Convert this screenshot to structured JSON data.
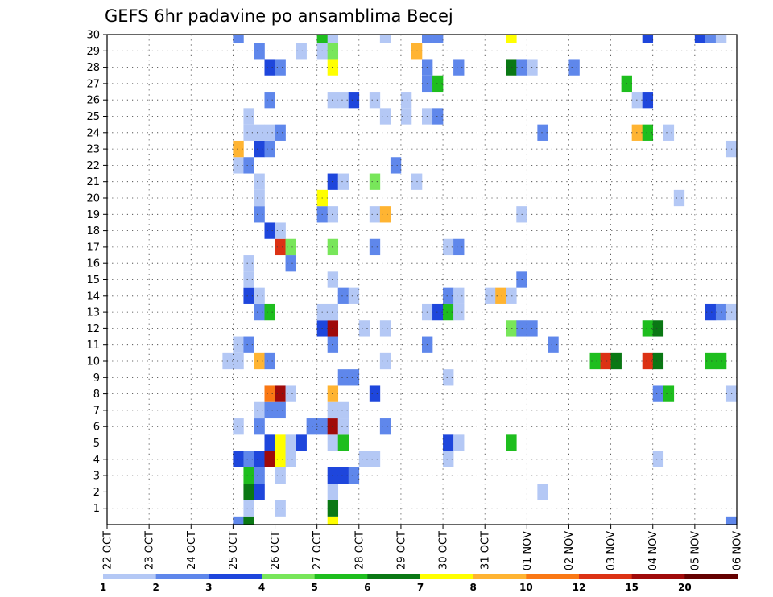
{
  "chart_data": {
    "type": "heatmap",
    "title": "GEFS 6hr padavine po ansamblima Becej",
    "xlabel": "",
    "ylabel": "",
    "x_ticks": [
      "22 OCT",
      "23 OCT",
      "24 OCT",
      "25 OCT",
      "26 OCT",
      "27 OCT",
      "28 OCT",
      "29 OCT",
      "30 OCT",
      "31 OCT",
      "01 NOV",
      "02 NOV",
      "03 NOV",
      "04 NOV",
      "05 NOV",
      "06 NOV"
    ],
    "y_ticks": [
      "1",
      "2",
      "3",
      "4",
      "5",
      "6",
      "7",
      "8",
      "9",
      "10",
      "11",
      "12",
      "13",
      "14",
      "15",
      "16",
      "17",
      "18",
      "19",
      "20",
      "21",
      "22",
      "23",
      "24",
      "25",
      "26",
      "27",
      "28",
      "29",
      "30"
    ],
    "xlim": [
      0,
      60
    ],
    "ylim": [
      0,
      30
    ],
    "grid": true,
    "colorbar": {
      "levels": [
        1,
        2,
        3,
        4,
        5,
        6,
        7,
        8,
        10,
        12,
        15,
        20
      ],
      "level_labels": [
        "1",
        "2",
        "3",
        "4",
        "5",
        "6",
        "7",
        "8",
        "10",
        "12",
        "15",
        "20"
      ],
      "colors": [
        "#b4c8f5",
        "#5f87eb",
        "#1e46dc",
        "#78e65a",
        "#1ebe1e",
        "#0a7814",
        "#ffff00",
        "#ffb432",
        "#fa7814",
        "#dc3214",
        "#a00a0a",
        "#640000"
      ]
    },
    "cells": [
      [
        12,
        0,
        2
      ],
      [
        13,
        0,
        5
      ],
      [
        13,
        0,
        6
      ],
      [
        21,
        0,
        7
      ],
      [
        59,
        0,
        2
      ],
      [
        13,
        1,
        1
      ],
      [
        16,
        1,
        1
      ],
      [
        21,
        1,
        6
      ],
      [
        13,
        2,
        6
      ],
      [
        14,
        2,
        3
      ],
      [
        21,
        2,
        1
      ],
      [
        41,
        2,
        1
      ],
      [
        13,
        3,
        5
      ],
      [
        14,
        3,
        2
      ],
      [
        16,
        3,
        1
      ],
      [
        21,
        3,
        3
      ],
      [
        22,
        3,
        3
      ],
      [
        23,
        3,
        2
      ],
      [
        12,
        4,
        3
      ],
      [
        13,
        4,
        2
      ],
      [
        14,
        4,
        3
      ],
      [
        15,
        4,
        11
      ],
      [
        16,
        4,
        7
      ],
      [
        17,
        4,
        1
      ],
      [
        24,
        4,
        1
      ],
      [
        25,
        4,
        1
      ],
      [
        32,
        4,
        1
      ],
      [
        52,
        4,
        1
      ],
      [
        15,
        5,
        3
      ],
      [
        16,
        5,
        7
      ],
      [
        17,
        5,
        1
      ],
      [
        18,
        5,
        3
      ],
      [
        21,
        5,
        1
      ],
      [
        22,
        5,
        5
      ],
      [
        32,
        5,
        3
      ],
      [
        33,
        5,
        1
      ],
      [
        38,
        5,
        5
      ],
      [
        12,
        6,
        1
      ],
      [
        14,
        6,
        2
      ],
      [
        19,
        6,
        2
      ],
      [
        20,
        6,
        2
      ],
      [
        21,
        6,
        11
      ],
      [
        22,
        6,
        1
      ],
      [
        26,
        6,
        2
      ],
      [
        14,
        7,
        1
      ],
      [
        15,
        7,
        2
      ],
      [
        16,
        7,
        2
      ],
      [
        21,
        7,
        1
      ],
      [
        22,
        7,
        1
      ],
      [
        15,
        8,
        9
      ],
      [
        16,
        8,
        11
      ],
      [
        17,
        8,
        1
      ],
      [
        21,
        8,
        8
      ],
      [
        25,
        8,
        3
      ],
      [
        52,
        8,
        2
      ],
      [
        53,
        8,
        5
      ],
      [
        59,
        8,
        1
      ],
      [
        22,
        9,
        2
      ],
      [
        23,
        9,
        2
      ],
      [
        32,
        9,
        1
      ],
      [
        11,
        10,
        1
      ],
      [
        12,
        10,
        1
      ],
      [
        14,
        10,
        8
      ],
      [
        15,
        10,
        2
      ],
      [
        26,
        10,
        1
      ],
      [
        46,
        10,
        5
      ],
      [
        47,
        10,
        10
      ],
      [
        48,
        10,
        6
      ],
      [
        51,
        10,
        10
      ],
      [
        52,
        10,
        6
      ],
      [
        57,
        10,
        5
      ],
      [
        58,
        10,
        5
      ],
      [
        12,
        11,
        1
      ],
      [
        13,
        11,
        2
      ],
      [
        21,
        11,
        2
      ],
      [
        30,
        11,
        2
      ],
      [
        42,
        11,
        2
      ],
      [
        20,
        12,
        3
      ],
      [
        21,
        12,
        11
      ],
      [
        24,
        12,
        1
      ],
      [
        26,
        12,
        1
      ],
      [
        38,
        12,
        4
      ],
      [
        39,
        12,
        2
      ],
      [
        40,
        12,
        2
      ],
      [
        51,
        12,
        5
      ],
      [
        52,
        12,
        6
      ],
      [
        14,
        13,
        2
      ],
      [
        15,
        13,
        5
      ],
      [
        20,
        13,
        1
      ],
      [
        21,
        13,
        1
      ],
      [
        30,
        13,
        1
      ],
      [
        31,
        13,
        3
      ],
      [
        32,
        13,
        5
      ],
      [
        33,
        13,
        1
      ],
      [
        57,
        13,
        3
      ],
      [
        58,
        13,
        2
      ],
      [
        59,
        13,
        1
      ],
      [
        13,
        14,
        3
      ],
      [
        14,
        14,
        1
      ],
      [
        22,
        14,
        2
      ],
      [
        23,
        14,
        1
      ],
      [
        32,
        14,
        2
      ],
      [
        33,
        14,
        1
      ],
      [
        36,
        14,
        1
      ],
      [
        37,
        14,
        8
      ],
      [
        38,
        14,
        1
      ],
      [
        13,
        15,
        1
      ],
      [
        21,
        15,
        1
      ],
      [
        39,
        15,
        2
      ],
      [
        13,
        16,
        1
      ],
      [
        17,
        16,
        2
      ],
      [
        16,
        17,
        10
      ],
      [
        17,
        17,
        4
      ],
      [
        21,
        17,
        4
      ],
      [
        25,
        17,
        2
      ],
      [
        32,
        17,
        1
      ],
      [
        33,
        17,
        2
      ],
      [
        15,
        18,
        3
      ],
      [
        16,
        18,
        1
      ],
      [
        14,
        19,
        2
      ],
      [
        20,
        19,
        2
      ],
      [
        21,
        19,
        1
      ],
      [
        25,
        19,
        1
      ],
      [
        26,
        19,
        8
      ],
      [
        39,
        19,
        1
      ],
      [
        14,
        20,
        1
      ],
      [
        20,
        20,
        7
      ],
      [
        54,
        20,
        1
      ],
      [
        14,
        21,
        1
      ],
      [
        21,
        21,
        3
      ],
      [
        22,
        21,
        1
      ],
      [
        25,
        21,
        4
      ],
      [
        29,
        21,
        1
      ],
      [
        12,
        22,
        1
      ],
      [
        13,
        22,
        2
      ],
      [
        27,
        22,
        2
      ],
      [
        12,
        23,
        8
      ],
      [
        14,
        23,
        3
      ],
      [
        15,
        23,
        2
      ],
      [
        59,
        23,
        1
      ],
      [
        13,
        24,
        1
      ],
      [
        14,
        24,
        1
      ],
      [
        15,
        24,
        1
      ],
      [
        16,
        24,
        2
      ],
      [
        41,
        24,
        2
      ],
      [
        50,
        24,
        8
      ],
      [
        51,
        24,
        5
      ],
      [
        53,
        24,
        1
      ],
      [
        13,
        25,
        1
      ],
      [
        26,
        25,
        1
      ],
      [
        28,
        25,
        1
      ],
      [
        30,
        25,
        1
      ],
      [
        31,
        25,
        2
      ],
      [
        15,
        26,
        2
      ],
      [
        21,
        26,
        1
      ],
      [
        22,
        26,
        1
      ],
      [
        23,
        26,
        3
      ],
      [
        25,
        26,
        1
      ],
      [
        28,
        26,
        1
      ],
      [
        50,
        26,
        1
      ],
      [
        51,
        26,
        3
      ],
      [
        30,
        27,
        2
      ],
      [
        31,
        27,
        5
      ],
      [
        49,
        27,
        5
      ],
      [
        15,
        28,
        3
      ],
      [
        16,
        28,
        2
      ],
      [
        21,
        28,
        7
      ],
      [
        30,
        28,
        2
      ],
      [
        33,
        28,
        2
      ],
      [
        38,
        28,
        6
      ],
      [
        39,
        28,
        2
      ],
      [
        40,
        28,
        1
      ],
      [
        44,
        28,
        2
      ],
      [
        14,
        29,
        2
      ],
      [
        18,
        29,
        1
      ],
      [
        20,
        29,
        1
      ],
      [
        21,
        29,
        4
      ],
      [
        29,
        29,
        8
      ],
      [
        12,
        30,
        2
      ],
      [
        20,
        30,
        5
      ],
      [
        21,
        30,
        1
      ],
      [
        26,
        30,
        1
      ],
      [
        30,
        30,
        2
      ],
      [
        31,
        30,
        2
      ],
      [
        38,
        30,
        7
      ],
      [
        51,
        30,
        3
      ],
      [
        56,
        30,
        3
      ],
      [
        57,
        30,
        2
      ],
      [
        58,
        30,
        1
      ]
    ]
  }
}
